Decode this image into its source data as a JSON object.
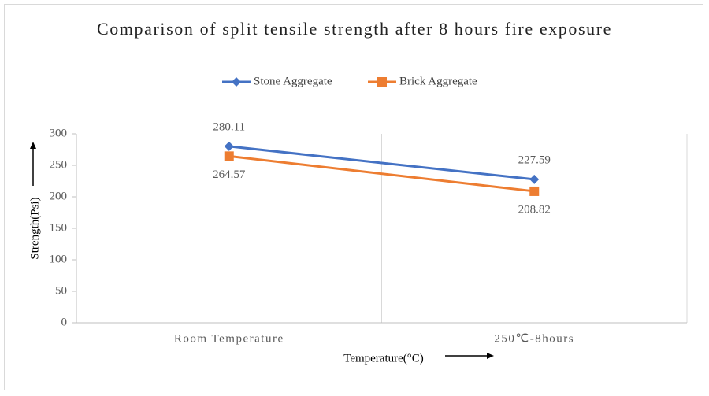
{
  "chart_data": {
    "type": "line",
    "title": "Comparison of split tensile strength after 8 hours fire exposure",
    "x_label": "Temperature(°C)",
    "y_label": "Strength(Psi)",
    "categories": [
      "Room Temperature",
      "250℃-8hours"
    ],
    "series": [
      {
        "name": "Stone Aggregate",
        "color": "#4472c4",
        "marker": "diamond",
        "values": [
          280.11,
          227.59
        ]
      },
      {
        "name": "Brick Aggregate",
        "color": "#ed7d31",
        "marker": "square",
        "values": [
          264.57,
          208.82
        ]
      }
    ],
    "ylim": [
      0,
      300
    ],
    "yticks": [
      0,
      50,
      100,
      150,
      200,
      250,
      300
    ],
    "grid": true
  }
}
